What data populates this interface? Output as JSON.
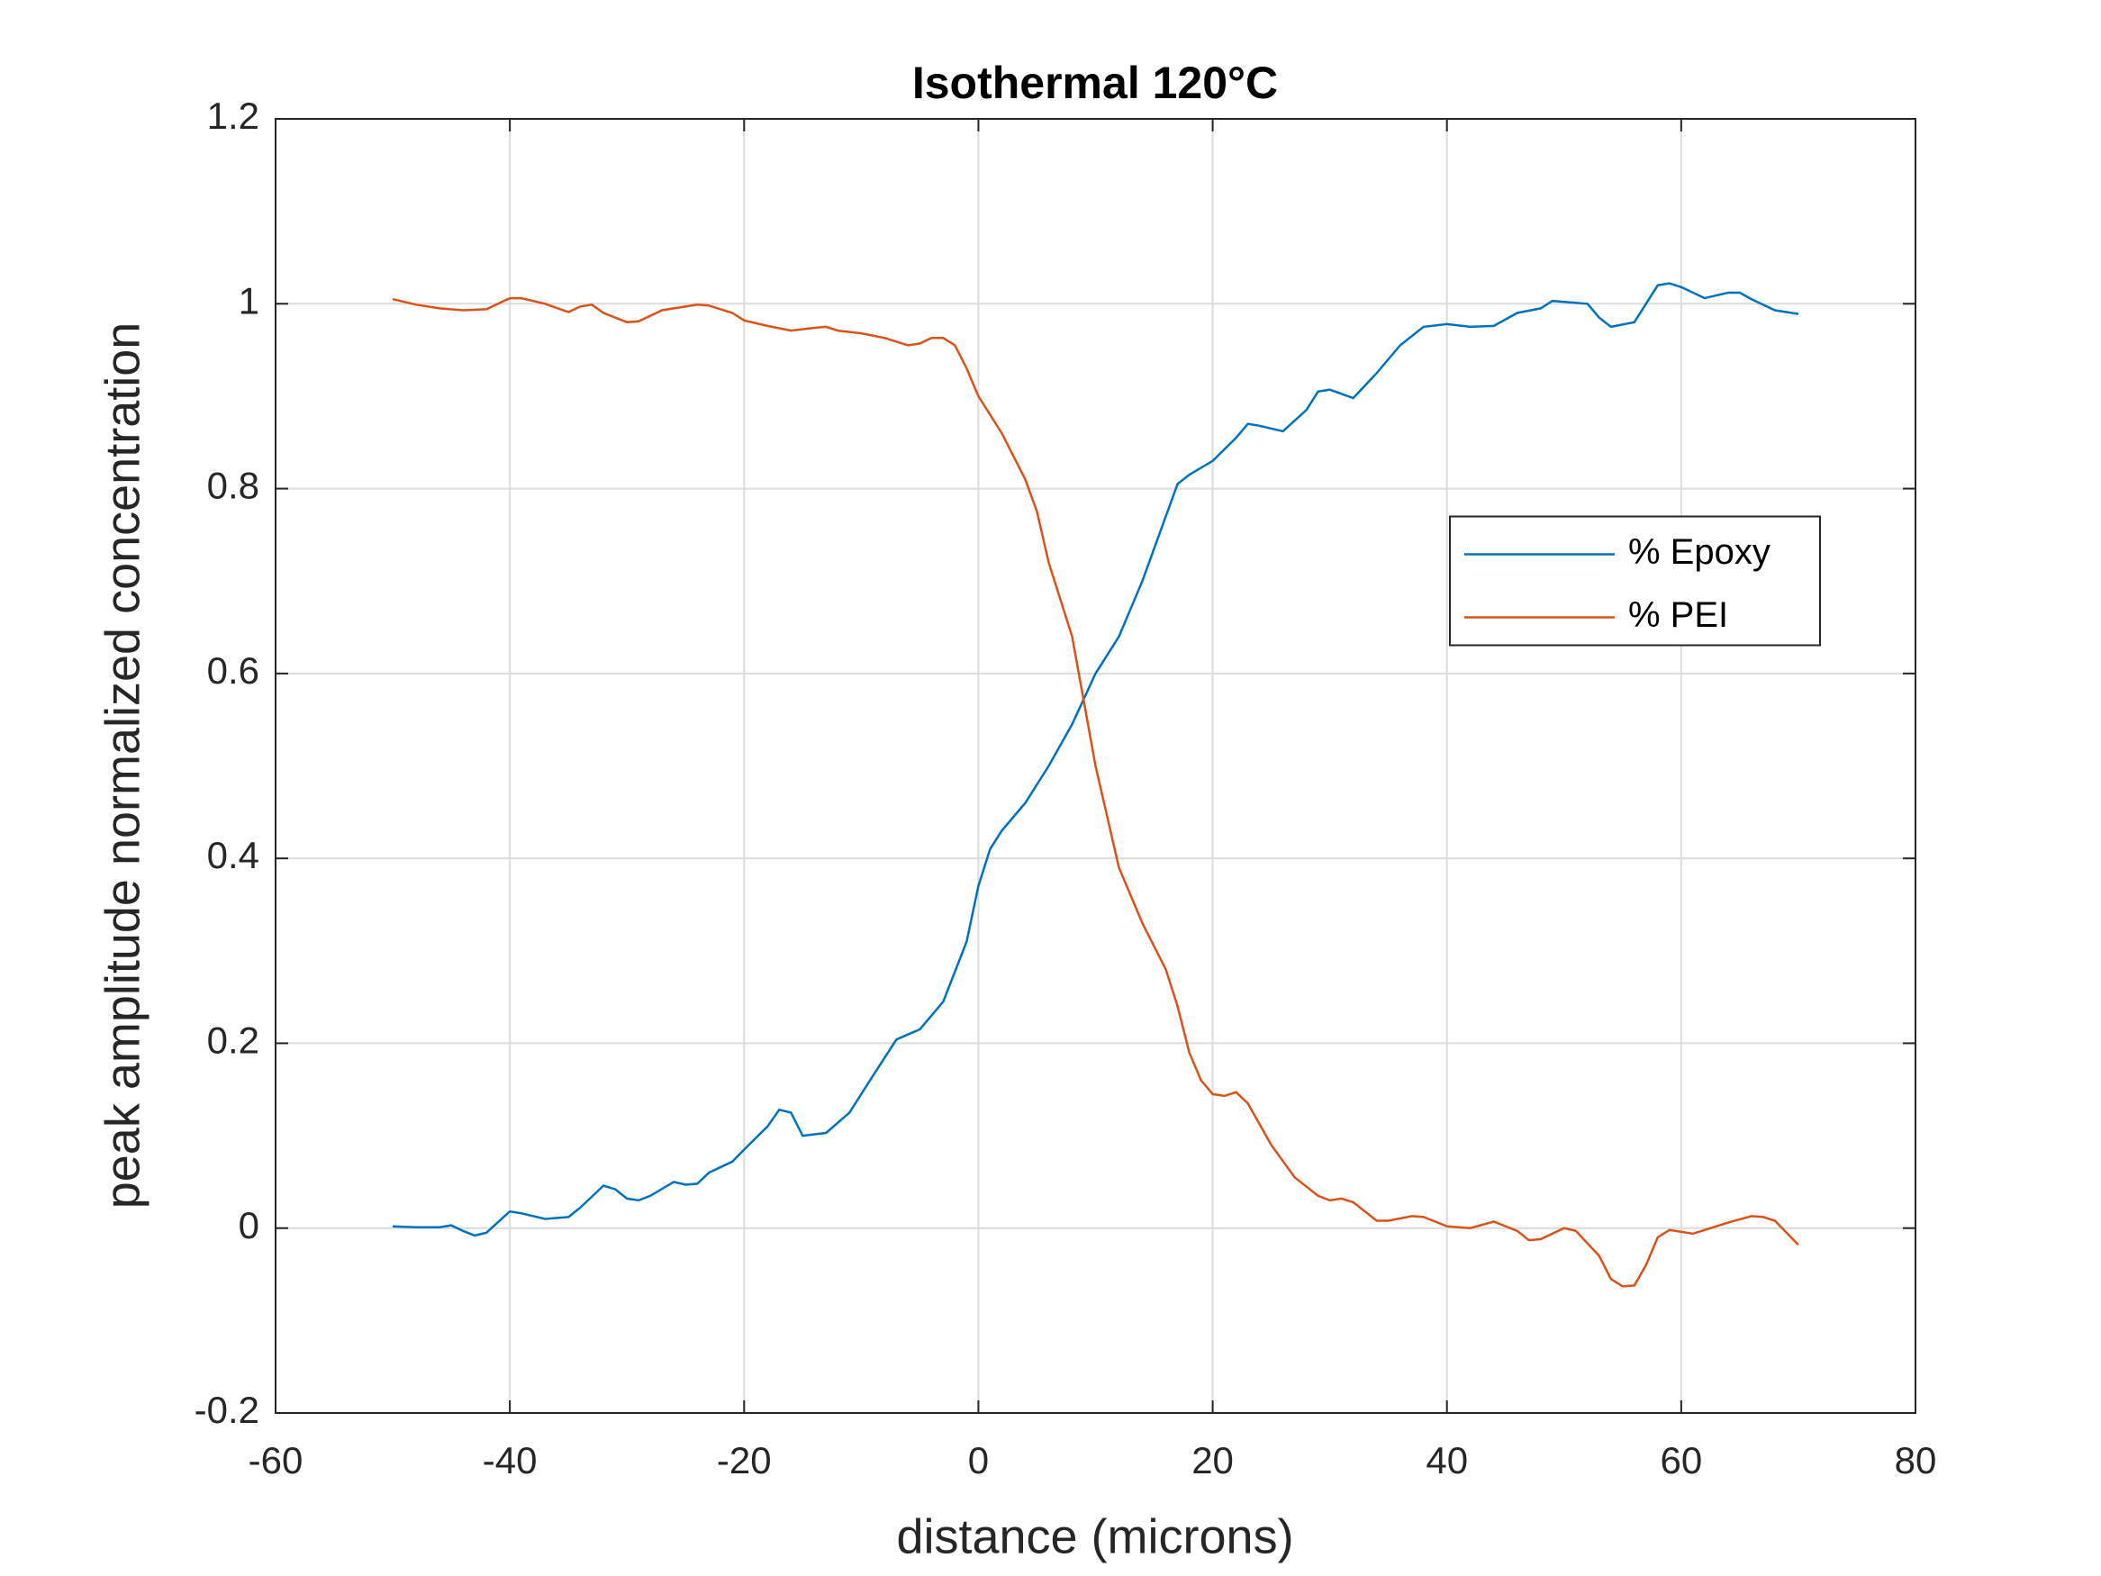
{
  "chart_data": {
    "type": "line",
    "title": "Isothermal 120°C",
    "xlabel": "distance (microns)",
    "ylabel": "peak amplitude normalized concentration",
    "xlim": [
      -60,
      80
    ],
    "xticks": [
      -60,
      -40,
      -20,
      0,
      20,
      40,
      60,
      80
    ],
    "ylim": [
      -0.2,
      1.2
    ],
    "yticks": [
      -0.2,
      0,
      0.2,
      0.4,
      0.6,
      0.8,
      1,
      1.2
    ],
    "grid": true,
    "legend_position": "east",
    "series": [
      {
        "name": "% Epoxy",
        "color": "#0072bd",
        "x": [
          -50,
          -48,
          -46,
          -45,
          -44,
          -43,
          -42,
          -40,
          -39,
          -37,
          -35,
          -34,
          -32,
          -31,
          -30,
          -29,
          -28,
          -26,
          -25,
          -24,
          -23,
          -21,
          -20,
          -18,
          -17,
          -16,
          -15,
          -13,
          -11,
          -9,
          -7,
          -5,
          -3,
          -1,
          0,
          1,
          2,
          4,
          6,
          8,
          10,
          12,
          14,
          16,
          17,
          18,
          20,
          22,
          23,
          24,
          26,
          28,
          29,
          30,
          32,
          34,
          36,
          38,
          40,
          42,
          44,
          46,
          48,
          49,
          50,
          52,
          53,
          54,
          56,
          57,
          58,
          59,
          60,
          62,
          64,
          65,
          66,
          68,
          70
        ],
        "values": [
          0.002,
          0.001,
          0.001,
          0.003,
          -0.003,
          -0.008,
          -0.005,
          0.018,
          0.016,
          0.01,
          0.012,
          0.022,
          0.046,
          0.042,
          0.032,
          0.03,
          0.035,
          0.05,
          0.047,
          0.048,
          0.06,
          0.072,
          0.085,
          0.11,
          0.128,
          0.125,
          0.1,
          0.103,
          0.125,
          0.165,
          0.204,
          0.215,
          0.245,
          0.31,
          0.37,
          0.41,
          0.43,
          0.46,
          0.5,
          0.545,
          0.6,
          0.64,
          0.7,
          0.77,
          0.805,
          0.815,
          0.83,
          0.855,
          0.87,
          0.868,
          0.862,
          0.885,
          0.905,
          0.907,
          0.898,
          0.925,
          0.955,
          0.975,
          0.978,
          0.975,
          0.976,
          0.99,
          0.995,
          1.003,
          1.002,
          1.0,
          0.985,
          0.975,
          0.98,
          1.0,
          1.02,
          1.022,
          1.018,
          1.006,
          1.012,
          1.012,
          1.005,
          0.993,
          0.989
        ]
      },
      {
        "name": "% PEI",
        "color": "#d95319",
        "x": [
          -50,
          -48,
          -46,
          -44,
          -42,
          -40,
          -39,
          -37,
          -35,
          -34,
          -33,
          -32,
          -30,
          -29,
          -27,
          -26,
          -24,
          -23,
          -21,
          -20,
          -18,
          -16,
          -14,
          -13,
          -12,
          -10,
          -8,
          -6,
          -5,
          -4,
          -3,
          -2,
          -1,
          0,
          2,
          4,
          5,
          6,
          8,
          9,
          10,
          12,
          14,
          16,
          17,
          18,
          19,
          20,
          21,
          22,
          23,
          25,
          27,
          29,
          30,
          31,
          32,
          34,
          35,
          37,
          38,
          40,
          42,
          44,
          46,
          47,
          48,
          50,
          51,
          53,
          54,
          55,
          56,
          57,
          58,
          59,
          61,
          62,
          64,
          66,
          67,
          68,
          70
        ],
        "values": [
          1.005,
          0.999,
          0.995,
          0.993,
          0.994,
          1.006,
          1.006,
          1.0,
          0.991,
          0.997,
          0.999,
          0.99,
          0.98,
          0.981,
          0.993,
          0.995,
          0.999,
          0.998,
          0.99,
          0.982,
          0.976,
          0.971,
          0.974,
          0.975,
          0.971,
          0.968,
          0.963,
          0.955,
          0.957,
          0.963,
          0.963,
          0.955,
          0.93,
          0.9,
          0.86,
          0.81,
          0.775,
          0.72,
          0.64,
          0.57,
          0.5,
          0.39,
          0.33,
          0.28,
          0.24,
          0.19,
          0.16,
          0.145,
          0.143,
          0.147,
          0.135,
          0.09,
          0.055,
          0.035,
          0.03,
          0.032,
          0.028,
          0.008,
          0.008,
          0.013,
          0.012,
          0.002,
          0.0,
          0.007,
          -0.003,
          -0.013,
          -0.012,
          0.0,
          -0.003,
          -0.03,
          -0.055,
          -0.063,
          -0.062,
          -0.04,
          -0.01,
          -0.002,
          -0.006,
          -0.002,
          0.006,
          0.013,
          0.012,
          0.008,
          -0.018
        ]
      }
    ]
  }
}
